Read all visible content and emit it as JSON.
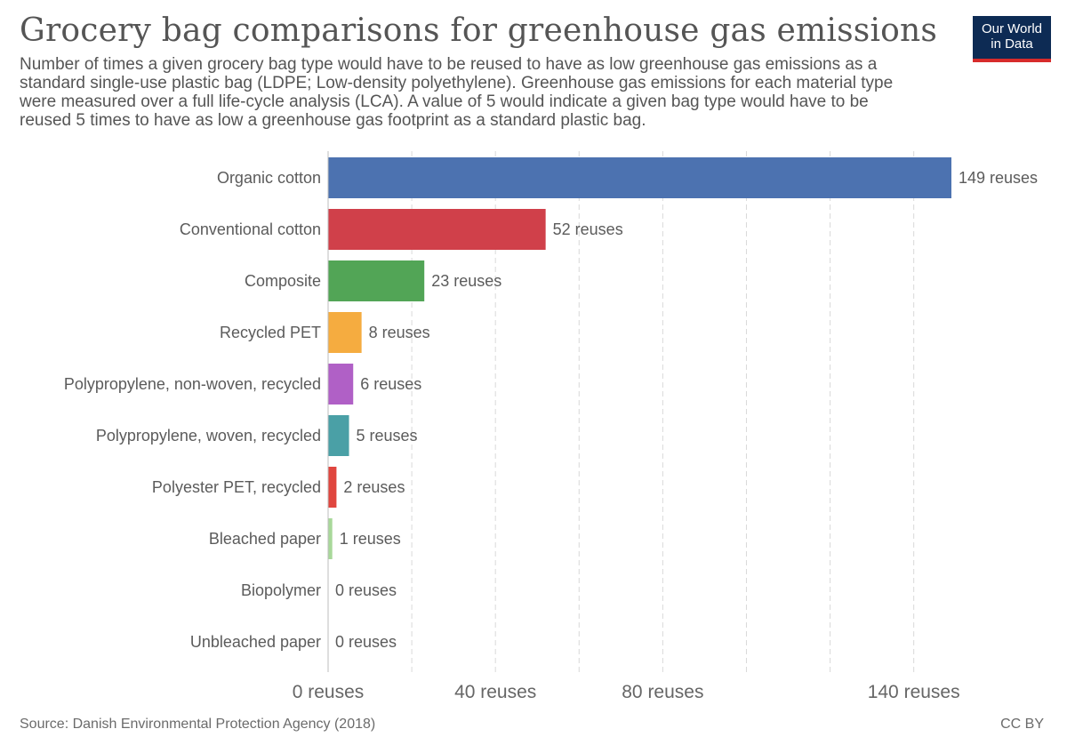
{
  "header": {
    "title": "Grocery bag comparisons for greenhouse gas emissions",
    "subtitle": "Number of times a given grocery bag type would have to be reused to have as low greenhouse gas emissions as a standard single-use plastic bag (LDPE; Low-density polyethylene). Greenhouse gas emissions for each material type were measured over a full life-cycle analysis (LCA). A value of 5 would indicate a given bag type would have to be reused 5 times to have as low a greenhouse gas footprint as a standard plastic bag."
  },
  "logo": {
    "line1": "Our World",
    "line2": "in Data"
  },
  "footer": {
    "source": "Source: Danish Environmental Protection Agency (2018)",
    "license": "CC BY"
  },
  "chart_data": {
    "type": "bar",
    "orientation": "horizontal",
    "title": "Grocery bag comparisons for greenhouse gas emissions",
    "unit": "reuses",
    "xlim": [
      0,
      149
    ],
    "grid": true,
    "categories": [
      "Organic cotton",
      "Conventional cotton",
      "Composite",
      "Recycled PET",
      "Polypropylene, non-woven, recycled",
      "Polypropylene, woven, recycled",
      "Polyester PET, recycled",
      "Bleached paper",
      "Biopolymer",
      "Unbleached paper"
    ],
    "values": [
      149,
      52,
      23,
      8,
      6,
      5,
      2,
      1,
      0,
      0
    ],
    "value_labels": [
      "149 reuses",
      "52 reuses",
      "23 reuses",
      "8 reuses",
      "6 reuses",
      "5 reuses",
      "2 reuses",
      "1 reuses",
      "0 reuses",
      "0 reuses"
    ],
    "colors": [
      "#4c72b0",
      "#d0404a",
      "#52a556",
      "#f5ac40",
      "#b060c6",
      "#4aa0a6",
      "#e0463f",
      "#a8d89a",
      "#999999",
      "#999999"
    ],
    "gridlines": [
      20,
      40,
      60,
      80,
      100,
      120,
      140
    ],
    "ticks": [
      {
        "value": 0,
        "label": "0 reuses"
      },
      {
        "value": 40,
        "label": "40 reuses"
      },
      {
        "value": 80,
        "label": "80 reuses"
      },
      {
        "value": 140,
        "label": "140 reuses"
      }
    ]
  }
}
